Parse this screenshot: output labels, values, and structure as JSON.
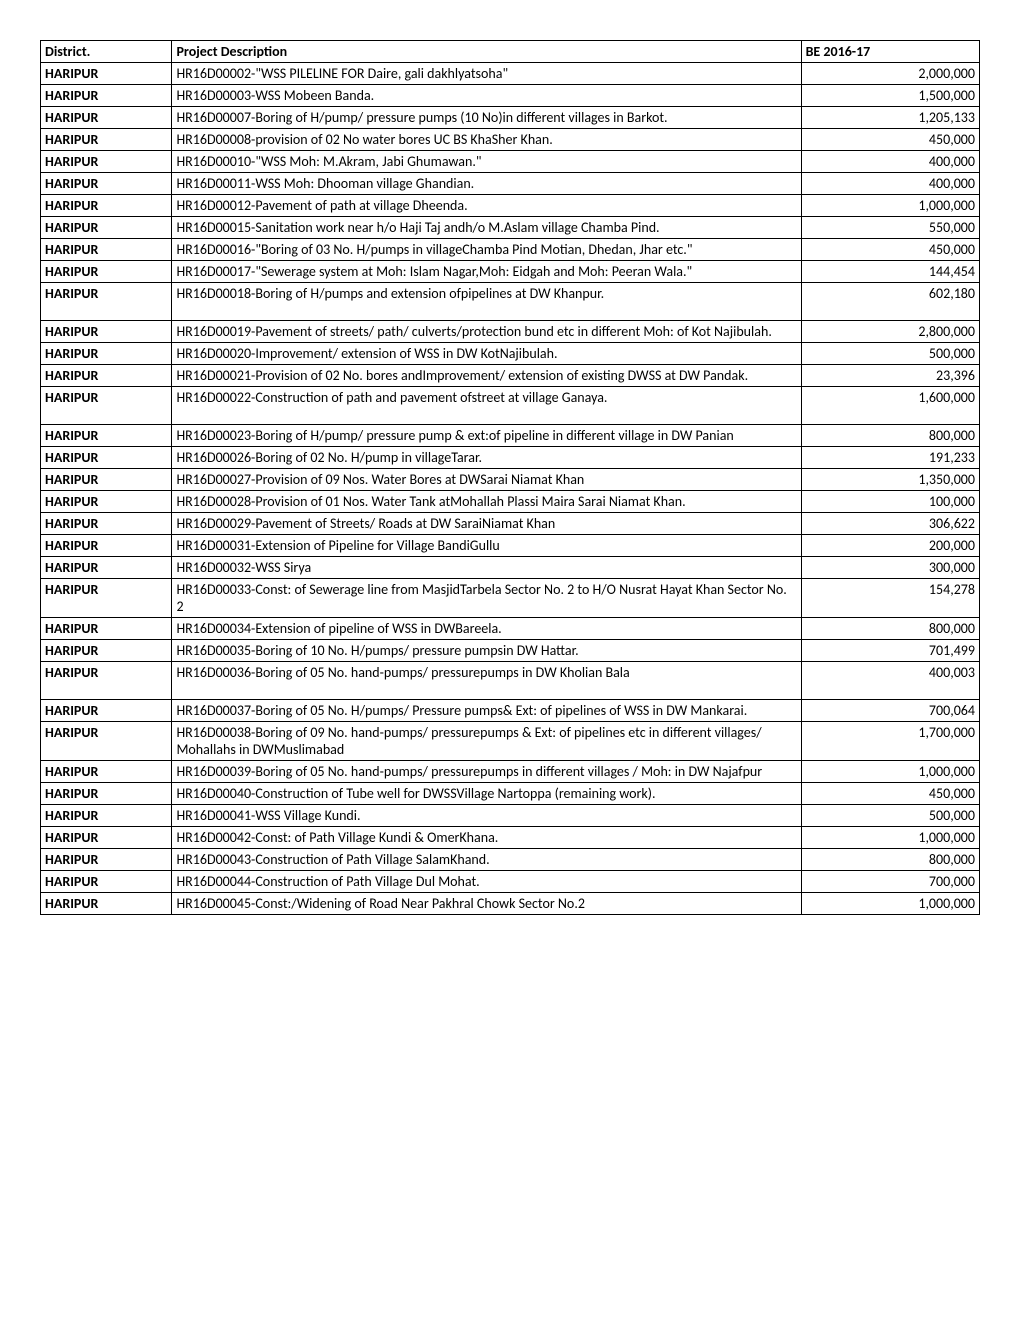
{
  "headers": {
    "district": "District.",
    "desc": "Project Description",
    "be": "BE 2016-17"
  },
  "rows": [
    {
      "district": "HARIPUR",
      "desc": "HR16D00002-\"WSS PILELINE FOR Daire, gali dakhlyatsoha\"",
      "be": "2,000,000"
    },
    {
      "district": "HARIPUR",
      "desc": "HR16D00003-WSS Mobeen Banda.",
      "be": "1,500,000"
    },
    {
      "district": "HARIPUR",
      "desc": "HR16D00007-Boring of H/pump/ pressure pumps (10 No)in different villages in Barkot.",
      "be": "1,205,133"
    },
    {
      "district": "HARIPUR",
      "desc": "HR16D00008-provision of 02 No water bores UC BS KhaSher Khan.",
      "be": "450,000"
    },
    {
      "district": "HARIPUR",
      "desc": "HR16D00010-\"WSS Moh: M.Akram, Jabi Ghumawan.\"",
      "be": "400,000"
    },
    {
      "district": "HARIPUR",
      "desc": "HR16D00011-WSS Moh: Dhooman village Ghandian.",
      "be": "400,000"
    },
    {
      "district": "HARIPUR",
      "desc": "HR16D00012-Pavement of path at village Dheenda.",
      "be": "1,000,000"
    },
    {
      "district": "HARIPUR",
      "desc": "HR16D00015-Sanitation work near h/o Haji Taj andh/o M.Aslam village Chamba Pind.",
      "be": "550,000"
    },
    {
      "district": "HARIPUR",
      "desc": "HR16D00016-\"Boring of 03 No. H/pumps in villageChamba Pind Motian, Dhedan, Jhar etc.\"",
      "be": "450,000"
    },
    {
      "district": "HARIPUR",
      "desc": "HR16D00017-\"Sewerage system at Moh: Islam Nagar,Moh: Eidgah and Moh: Peeran Wala.\"",
      "be": "144,454"
    },
    {
      "district": "HARIPUR",
      "desc": "HR16D00018-Boring of H/pumps and extension ofpipelines at DW Khanpur.",
      "be": "602,180",
      "tall": true
    },
    {
      "district": "HARIPUR",
      "desc": "HR16D00019-Pavement of streets/ path/ culverts/protection bund etc in different Moh: of  Kot Najibulah.",
      "be": "2,800,000"
    },
    {
      "district": "HARIPUR",
      "desc": "HR16D00020-Improvement/ extension of WSS in DW KotNajibulah.",
      "be": "500,000"
    },
    {
      "district": "HARIPUR",
      "desc": "HR16D00021-Provision of 02 No. bores andImprovement/ extension of existing DWSS at DW Pandak.",
      "be": "23,396"
    },
    {
      "district": "HARIPUR",
      "desc": "HR16D00022-Construction of path and pavement ofstreet at village Ganaya.",
      "be": "1,600,000",
      "tall": true
    },
    {
      "district": "HARIPUR",
      "desc": "HR16D00023-Boring of H/pump/ pressure pump & ext:of pipeline in different village in DW Panian",
      "be": "800,000"
    },
    {
      "district": "HARIPUR",
      "desc": "HR16D00026-Boring of 02 No. H/pump in villageTarar.",
      "be": "191,233"
    },
    {
      "district": "HARIPUR",
      "desc": "HR16D00027-Provision of 09 Nos. Water Bores at DWSarai Niamat Khan",
      "be": "1,350,000"
    },
    {
      "district": "HARIPUR",
      "desc": "HR16D00028-Provision of 01 Nos. Water Tank atMohallah Plassi Maira Sarai Niamat Khan.",
      "be": "100,000"
    },
    {
      "district": "HARIPUR",
      "desc": "HR16D00029-Pavement of Streets/ Roads at DW SaraiNiamat Khan",
      "be": "306,622"
    },
    {
      "district": "HARIPUR",
      "desc": "HR16D00031-Extension of Pipeline for Village BandiGullu",
      "be": "200,000"
    },
    {
      "district": "HARIPUR",
      "desc": "HR16D00032-WSS Sirya",
      "be": "300,000"
    },
    {
      "district": "HARIPUR",
      "desc": "HR16D00033-Const: of Sewerage line from MasjidTarbela Sector No. 2 to H/O Nusrat Hayat Khan Sector  No. 2",
      "be": "154,278"
    },
    {
      "district": "HARIPUR",
      "desc": "HR16D00034-Extension of pipeline of WSS in DWBareela.",
      "be": "800,000"
    },
    {
      "district": "HARIPUR",
      "desc": "HR16D00035-Boring of 10 No. H/pumps/ pressure pumpsin DW Hattar.",
      "be": "701,499"
    },
    {
      "district": "HARIPUR",
      "desc": "HR16D00036-Boring of 05 No. hand-pumps/ pressurepumps in DW Kholian Bala",
      "be": "400,003",
      "tall": true
    },
    {
      "district": "HARIPUR",
      "desc": "HR16D00037-Boring of 05 No. H/pumps/ Pressure pumps& Ext: of pipelines of WSS in DW Mankarai.",
      "be": "700,064"
    },
    {
      "district": "HARIPUR",
      "desc": "HR16D00038-Boring of 09 No.  hand-pumps/ pressurepumps & Ext: of pipelines etc in different villages/ Mohallahs in DWMuslimabad",
      "be": "1,700,000"
    },
    {
      "district": "HARIPUR",
      "desc": "HR16D00039-Boring of 05 No. hand-pumps/ pressurepumps in different villages / Moh: in DW Najafpur",
      "be": "1,000,000"
    },
    {
      "district": "HARIPUR",
      "desc": "HR16D00040-Construction of Tube well for DWSSVillage Nartoppa (remaining work).",
      "be": "450,000"
    },
    {
      "district": "HARIPUR",
      "desc": "HR16D00041-WSS Village Kundi.",
      "be": "500,000"
    },
    {
      "district": "HARIPUR",
      "desc": "HR16D00042-Const: of Path Village Kundi & OmerKhana.",
      "be": "1,000,000"
    },
    {
      "district": "HARIPUR",
      "desc": "HR16D00043-Construction of Path Village SalamKhand.",
      "be": "800,000"
    },
    {
      "district": "HARIPUR",
      "desc": "HR16D00044-Construction of Path Village Dul Mohat.",
      "be": "700,000"
    },
    {
      "district": "HARIPUR",
      "desc": "HR16D00045-Const:/Widening of Road Near Pakhral Chowk Sector No.2",
      "be": "1,000,000"
    }
  ]
}
